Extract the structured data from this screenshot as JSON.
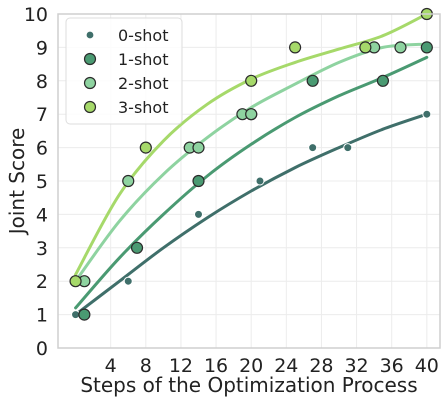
{
  "chart_data": {
    "type": "scatter",
    "xlabel": "Steps of the Optimization Process",
    "ylabel": "Joint Score",
    "xlim": [
      -2,
      41.5
    ],
    "ylim": [
      0,
      10
    ],
    "x_ticks": [
      4,
      8,
      12,
      16,
      20,
      24,
      28,
      32,
      36,
      40
    ],
    "x_tick_labels": [
      "4",
      "8",
      "12",
      "16",
      "20",
      "24",
      "28",
      "32",
      "36",
      "40"
    ],
    "y_ticks": [
      0,
      1,
      2,
      3,
      4,
      5,
      6,
      7,
      8,
      9,
      10
    ],
    "y_tick_labels": [
      "0",
      "1",
      "2",
      "3",
      "4",
      "5",
      "6",
      "7",
      "8",
      "9",
      "10"
    ],
    "grid": true,
    "legend_position": "top-left",
    "series": [
      {
        "name": "0-shot",
        "color": "#3f6f6a",
        "marker": "small",
        "points": [
          [
            0,
            1
          ],
          [
            6,
            2
          ],
          [
            14,
            4
          ],
          [
            21,
            5
          ],
          [
            27,
            6
          ],
          [
            31,
            6
          ],
          [
            40,
            7
          ]
        ],
        "fit": [
          [
            0,
            1
          ],
          [
            5,
            2.0
          ],
          [
            10,
            3.0
          ],
          [
            15,
            3.9
          ],
          [
            20,
            4.7
          ],
          [
            25,
            5.4
          ],
          [
            30,
            6.0
          ],
          [
            35,
            6.55
          ],
          [
            40,
            7.0
          ]
        ]
      },
      {
        "name": "1-shot",
        "color": "#4a9a72",
        "marker": "large",
        "points": [
          [
            1,
            1
          ],
          [
            7,
            3
          ],
          [
            14,
            5
          ],
          [
            20,
            7
          ],
          [
            27,
            8
          ],
          [
            35,
            8
          ],
          [
            40,
            9
          ]
        ],
        "fit": [
          [
            0,
            1.2
          ],
          [
            5,
            2.7
          ],
          [
            10,
            4.0
          ],
          [
            15,
            5.15
          ],
          [
            20,
            6.1
          ],
          [
            25,
            6.9
          ],
          [
            30,
            7.55
          ],
          [
            35,
            8.1
          ],
          [
            40,
            8.7
          ]
        ]
      },
      {
        "name": "2-shot",
        "color": "#8ed3a0",
        "marker": "large",
        "points": [
          [
            1,
            2
          ],
          [
            6,
            5
          ],
          [
            13,
            6
          ],
          [
            14,
            6
          ],
          [
            19,
            7
          ],
          [
            20,
            7
          ],
          [
            34,
            9
          ],
          [
            37,
            9
          ]
        ],
        "fit": [
          [
            0,
            2.0
          ],
          [
            5,
            3.8
          ],
          [
            10,
            5.2
          ],
          [
            15,
            6.3
          ],
          [
            20,
            7.2
          ],
          [
            25,
            7.9
          ],
          [
            30,
            8.55
          ],
          [
            35,
            9.0
          ],
          [
            40,
            9.1
          ]
        ]
      },
      {
        "name": "3-shot",
        "color": "#a6d96a",
        "marker": "large",
        "points": [
          [
            0,
            2
          ],
          [
            8,
            6
          ],
          [
            20,
            8
          ],
          [
            25,
            9
          ],
          [
            33,
            9
          ],
          [
            40,
            10
          ]
        ],
        "fit": [
          [
            0,
            2.2
          ],
          [
            5,
            4.6
          ],
          [
            10,
            6.2
          ],
          [
            15,
            7.3
          ],
          [
            20,
            8.05
          ],
          [
            25,
            8.55
          ],
          [
            30,
            8.95
          ],
          [
            35,
            9.35
          ],
          [
            40,
            10.0
          ]
        ]
      }
    ]
  }
}
